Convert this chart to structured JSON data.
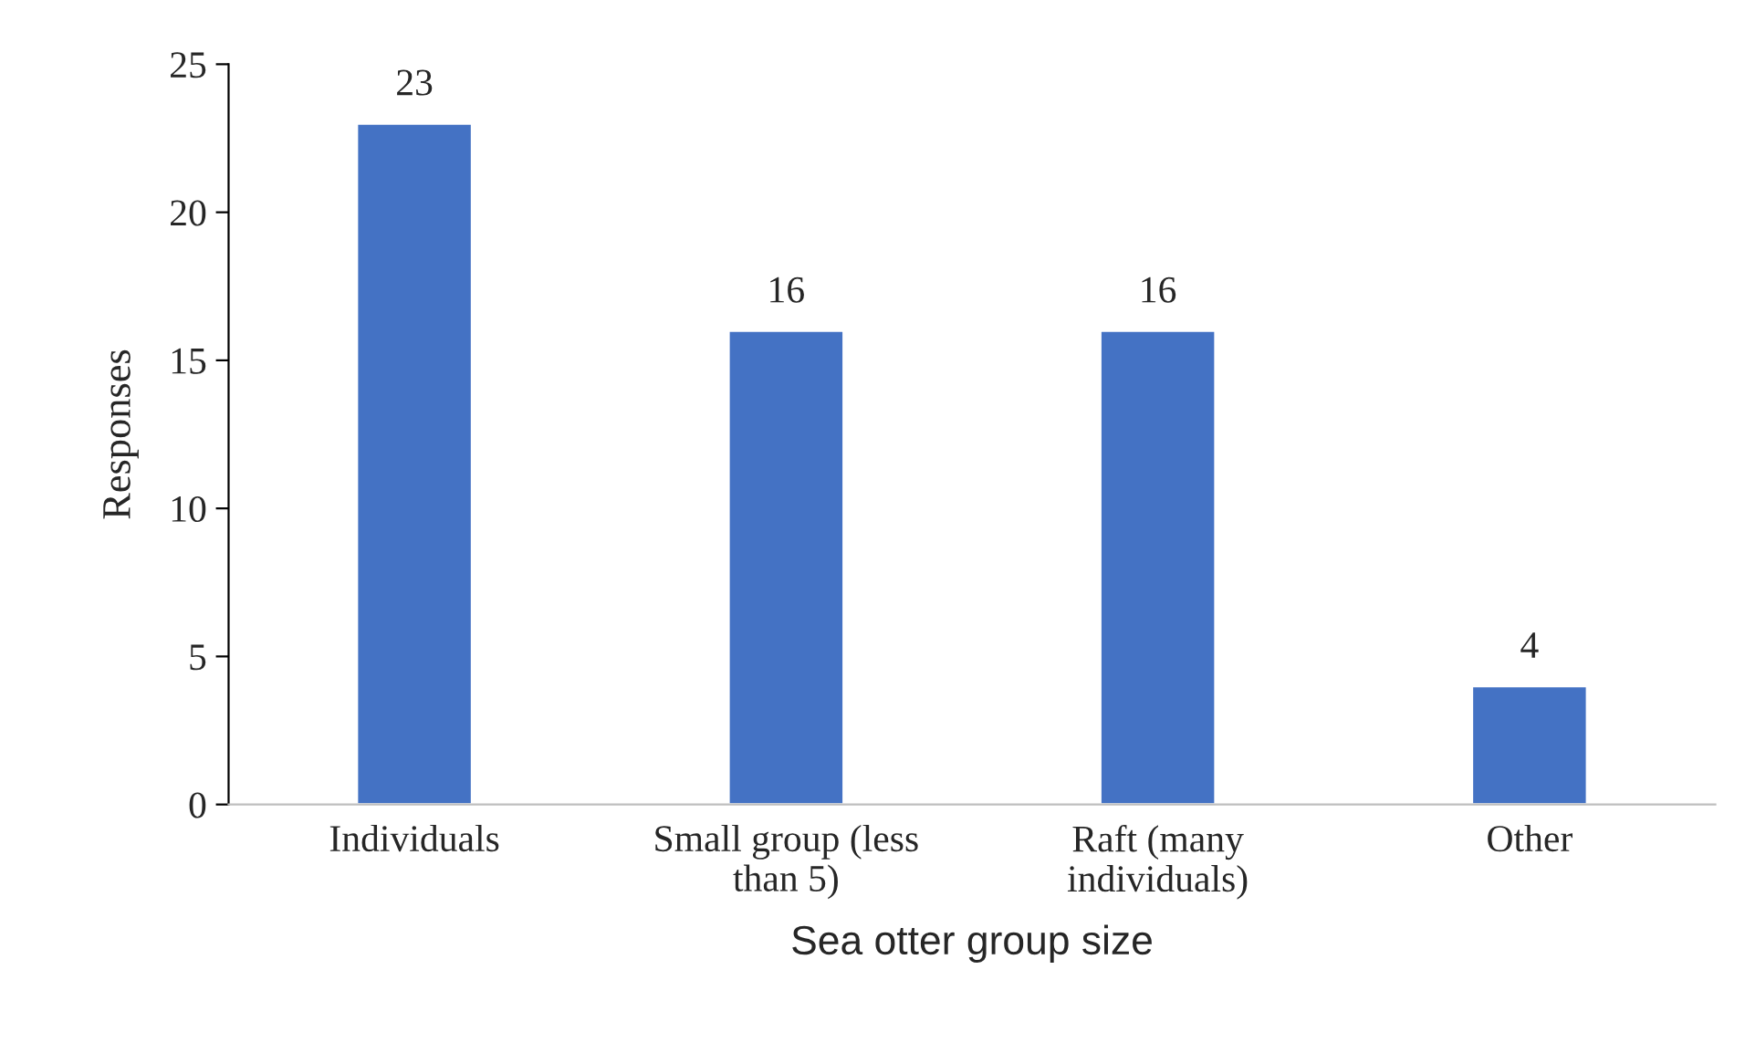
{
  "chart_data": {
    "type": "bar",
    "xlabel": "Sea otter group size",
    "ylabel": "Responses",
    "categories": [
      "Individuals",
      "Small group (less\nthan 5)",
      "Raft (many\nindividuals)",
      "Other"
    ],
    "values": [
      23,
      16,
      16,
      4
    ],
    "color": "#4472c4",
    "ylim": [
      0,
      25
    ],
    "yticks": [
      0,
      5,
      10,
      15,
      20,
      25
    ],
    "grid": false,
    "data_labels": true
  }
}
